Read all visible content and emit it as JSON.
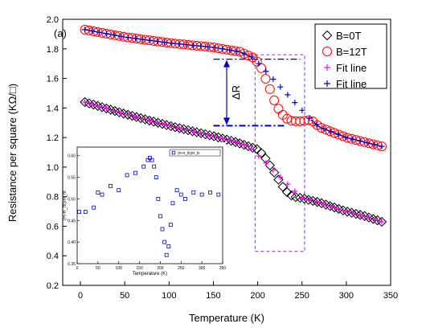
{
  "chart_data": [
    {
      "type": "scatter",
      "panel_label": "(a)",
      "xlabel": "Temperature (K)",
      "ylabel": "Resistance per square (KΩ/□)",
      "xlim": [
        -20,
        350
      ],
      "ylim": [
        0.2,
        2.0
      ],
      "xticks": [
        0,
        50,
        100,
        150,
        200,
        250,
        300,
        350
      ],
      "yticks": [
        0.2,
        0.4,
        0.6,
        0.8,
        1.0,
        1.2,
        1.4,
        1.6,
        1.8,
        2.0
      ],
      "legend_position": "top-right",
      "annotation": "ΔR",
      "colors": {
        "b0": "#000000",
        "b12": "#ff0000",
        "fit0": "#ff00ff",
        "fit12": "#0000cc",
        "box": "#8a2be2"
      },
      "series": [
        {
          "name": "B=0T",
          "marker": "diamond-open",
          "x": [
            5,
            50,
            100,
            150,
            175,
            190,
            200,
            205,
            210,
            215,
            220,
            225,
            230,
            235,
            240,
            250,
            270,
            300,
            320,
            340
          ],
          "y": [
            1.44,
            1.36,
            1.28,
            1.21,
            1.17,
            1.14,
            1.12,
            1.09,
            1.05,
            1.0,
            0.95,
            0.9,
            0.85,
            0.82,
            0.8,
            0.79,
            0.76,
            0.7,
            0.67,
            0.63
          ]
        },
        {
          "name": "B=12T",
          "marker": "circle-open",
          "x": [
            5,
            50,
            100,
            150,
            180,
            195,
            200,
            205,
            210,
            215,
            220,
            225,
            230,
            235,
            240,
            250,
            260,
            270,
            300,
            320,
            340
          ],
          "y": [
            1.93,
            1.88,
            1.84,
            1.81,
            1.78,
            1.74,
            1.71,
            1.66,
            1.58,
            1.51,
            1.43,
            1.38,
            1.34,
            1.32,
            1.31,
            1.31,
            1.32,
            1.27,
            1.2,
            1.17,
            1.14
          ]
        },
        {
          "name": "Fit line",
          "marker": "plus",
          "x": [
            5,
            50,
            100,
            150,
            175,
            190,
            250,
            270,
            300,
            320,
            340
          ],
          "y": [
            1.44,
            1.36,
            1.28,
            1.21,
            1.17,
            1.14,
            0.79,
            0.76,
            0.7,
            0.67,
            0.63
          ]
        },
        {
          "name": "Fit line",
          "marker": "plus",
          "x": [
            5,
            50,
            100,
            150,
            180,
            195,
            260,
            270,
            300,
            320,
            340
          ],
          "y": [
            1.93,
            1.88,
            1.84,
            1.81,
            1.78,
            1.74,
            1.32,
            1.27,
            1.2,
            1.17,
            1.14
          ]
        }
      ]
    },
    {
      "type": "scatter",
      "inset": true,
      "xlabel": "Temperature (K)",
      "ylabel": "(R-R_fit)/R_fit",
      "xlim": [
        0,
        350
      ],
      "ylim": [
        0.35,
        0.62
      ],
      "xticks": [
        0,
        50,
        100,
        150,
        200,
        250,
        300,
        350
      ],
      "yticks": [
        0.35,
        0.4,
        0.45,
        0.5,
        0.55,
        0.6
      ],
      "legend_text": "(R-R_fit)/R_fit",
      "series": [
        {
          "marker": "square-open",
          "x": [
            5,
            20,
            40,
            50,
            60,
            80,
            100,
            120,
            140,
            160,
            170,
            175,
            180,
            185,
            190,
            195,
            200,
            205,
            210,
            215,
            220,
            225,
            230,
            240,
            250,
            260,
            280,
            300,
            320,
            340
          ],
          "y": [
            0.47,
            0.47,
            0.48,
            0.515,
            0.51,
            0.53,
            0.52,
            0.555,
            0.56,
            0.575,
            0.59,
            0.595,
            0.59,
            0.575,
            0.55,
            0.5,
            0.46,
            0.43,
            0.4,
            0.37,
            0.39,
            0.44,
            0.49,
            0.52,
            0.51,
            0.5,
            0.515,
            0.51,
            0.515,
            0.51
          ]
        }
      ]
    }
  ]
}
